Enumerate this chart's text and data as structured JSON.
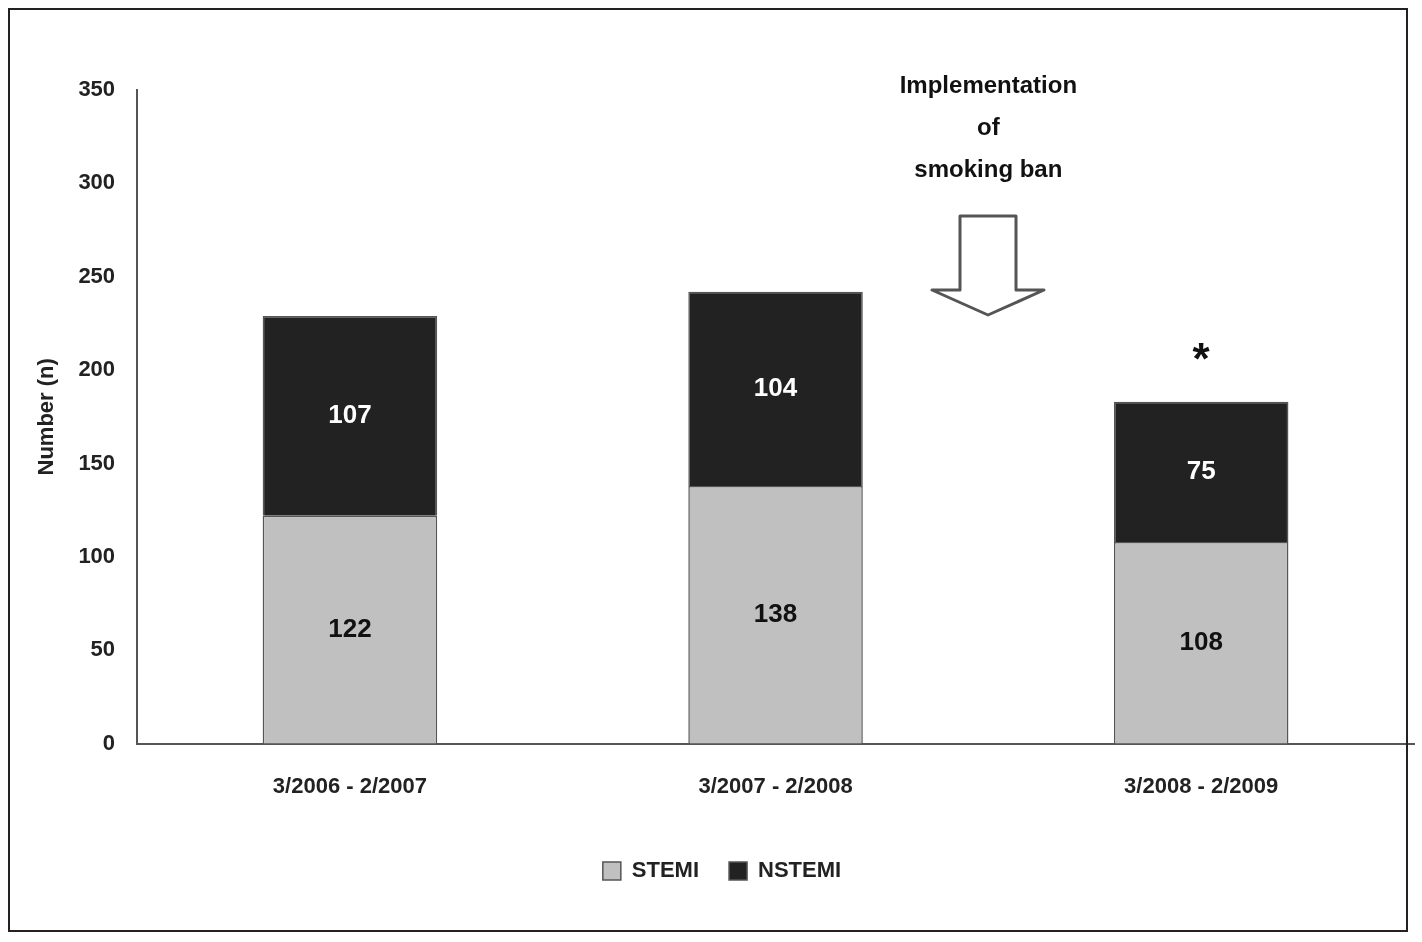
{
  "chart_data": {
    "type": "bar",
    "stacked": true,
    "ylabel": "Number (n)",
    "categories": [
      "3/2006 - 2/2007",
      "3/2007 - 2/2008",
      "3/2008 - 2/2009"
    ],
    "series": [
      {
        "name": "STEMI",
        "color": "#c0c0c0",
        "values": [
          122,
          138,
          108
        ]
      },
      {
        "name": "NSTEMI",
        "color": "#222222",
        "values": [
          107,
          104,
          75
        ]
      }
    ],
    "ylim": [
      0,
      350
    ],
    "yticks": [
      0,
      50,
      100,
      150,
      200,
      250,
      300,
      350
    ],
    "grid": false,
    "legend": "bottom",
    "data_labels": true,
    "annotations": [
      "Implementation\nof\nsmoking ban",
      "*"
    ]
  }
}
